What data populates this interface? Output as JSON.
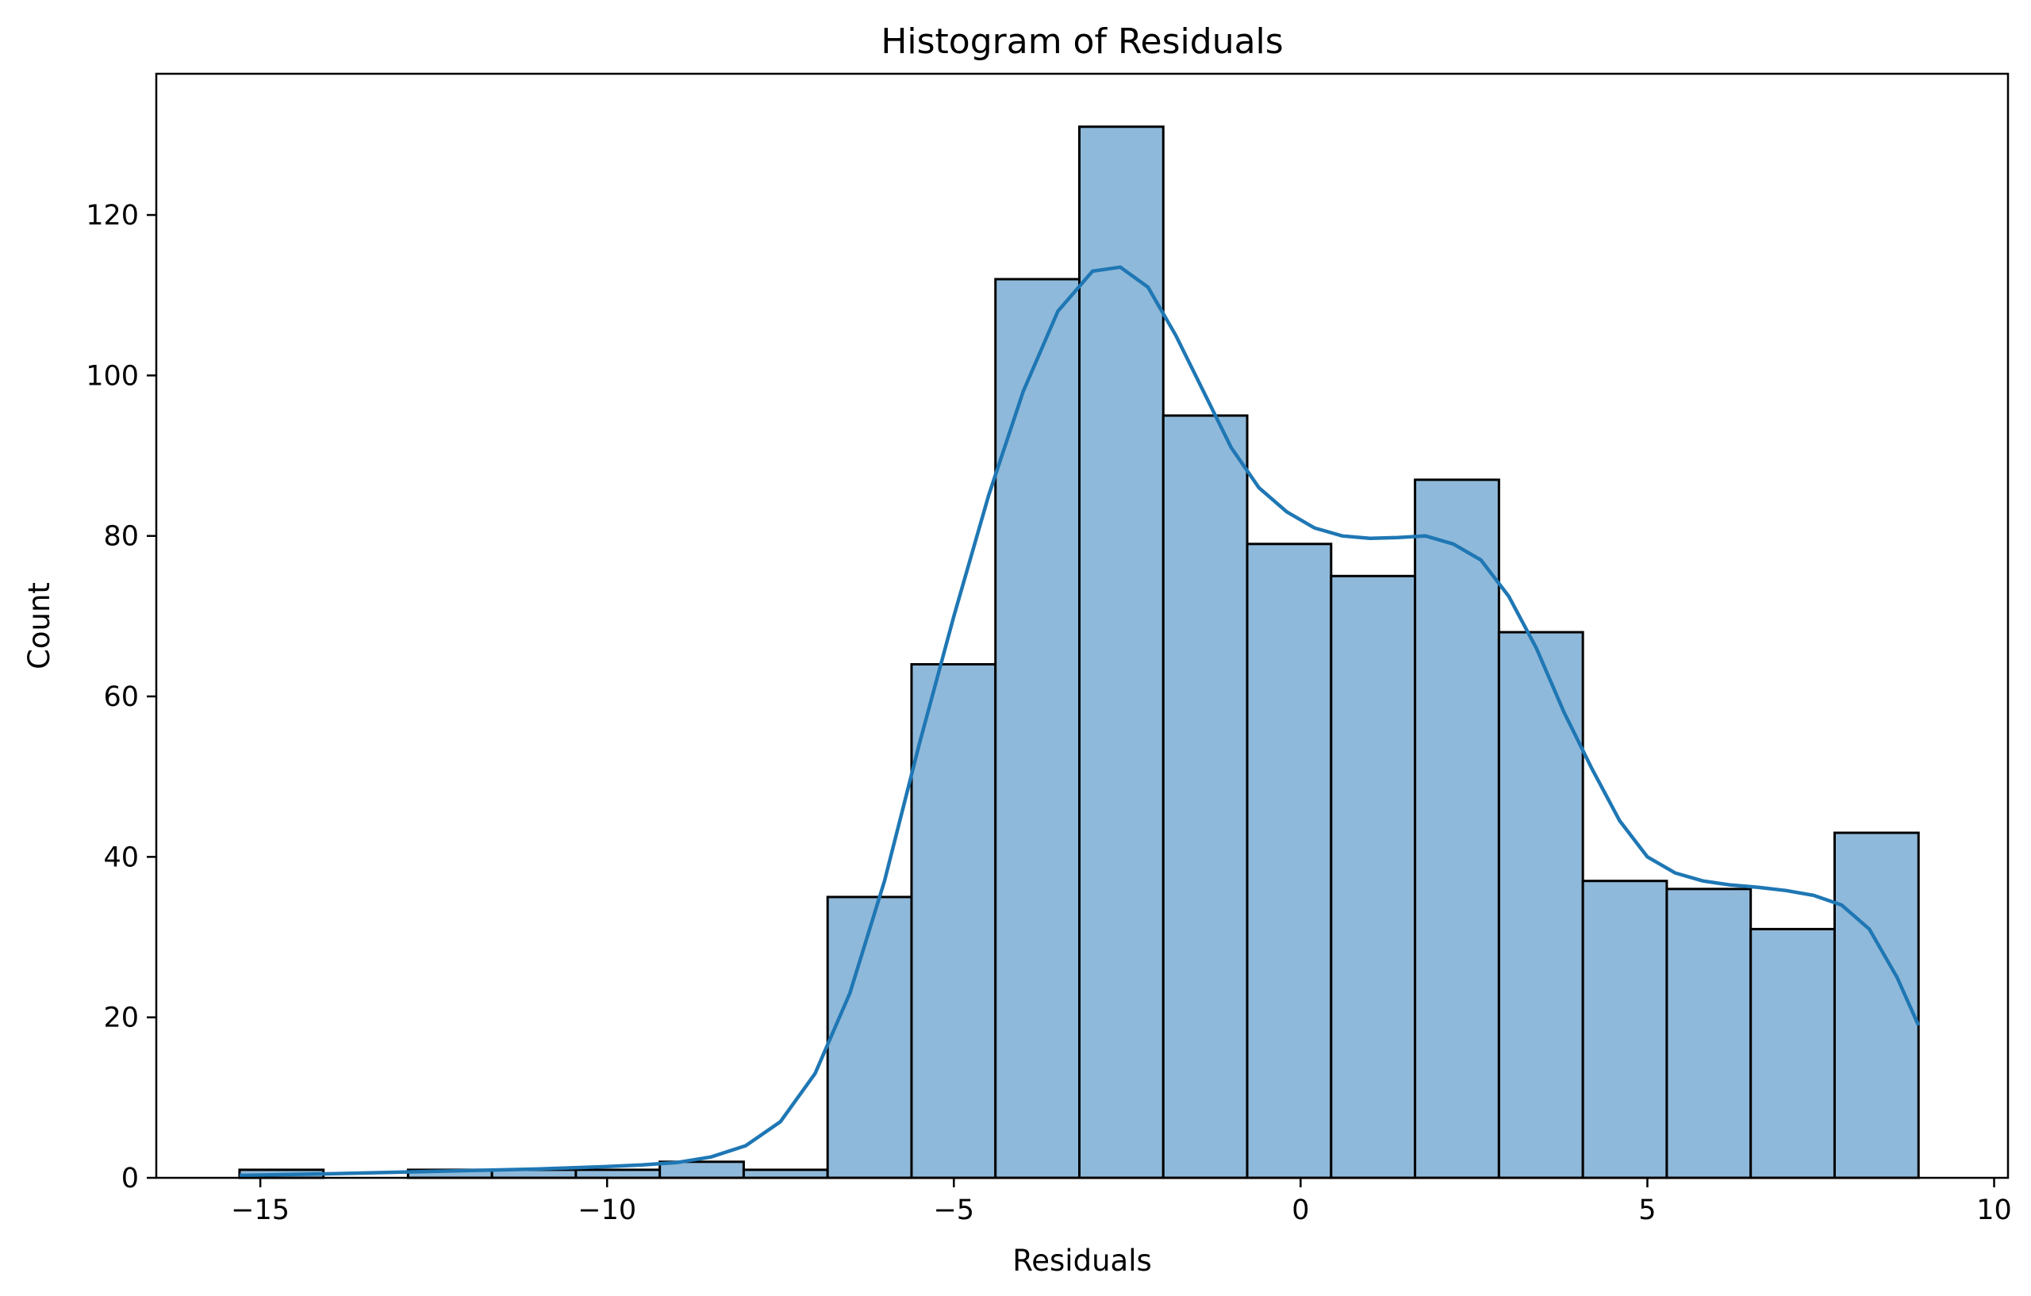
{
  "chart_data": {
    "type": "bar",
    "subtype": "histogram_with_kde",
    "title": "Histogram of Residuals",
    "xlabel": "Residuals",
    "ylabel": "Count",
    "xlim": [
      -16.5,
      10.2
    ],
    "ylim": [
      0,
      137.6
    ],
    "xticks": [
      -15,
      -10,
      -5,
      0,
      5,
      10
    ],
    "xtick_labels": [
      "−15",
      "−10",
      "−5",
      "0",
      "5",
      "10"
    ],
    "yticks": [
      0,
      20,
      40,
      60,
      80,
      100,
      120
    ],
    "ytick_labels": [
      "0",
      "20",
      "40",
      "60",
      "80",
      "100",
      "120"
    ],
    "grid": false,
    "legend": "none",
    "colors": {
      "bar_fill": "#8fb9da",
      "bar_edge": "#000000",
      "kde_line": "#1f77b4"
    },
    "bin_edges": [
      -15.3,
      -14.09,
      -12.87,
      -11.66,
      -10.45,
      -9.24,
      -8.03,
      -6.82,
      -5.61,
      -4.4,
      -3.19,
      -1.98,
      -0.77,
      0.44,
      1.65,
      2.86,
      4.07,
      5.28,
      6.49,
      7.7,
      8.91
    ],
    "counts": [
      1,
      0,
      1,
      1,
      1,
      2,
      1,
      35,
      64,
      112,
      131,
      95,
      79,
      75,
      87,
      68,
      37,
      36,
      31,
      43
    ],
    "kde": {
      "x": [
        -15.3,
        -14.0,
        -13.0,
        -12.0,
        -11.0,
        -10.0,
        -9.5,
        -9.0,
        -8.5,
        -8.0,
        -7.5,
        -7.0,
        -6.5,
        -6.0,
        -5.5,
        -5.0,
        -4.5,
        -4.0,
        -3.5,
        -3.0,
        -2.6,
        -2.2,
        -1.8,
        -1.4,
        -1.0,
        -0.6,
        -0.2,
        0.2,
        0.6,
        1.0,
        1.4,
        1.8,
        2.2,
        2.6,
        3.0,
        3.4,
        3.8,
        4.2,
        4.6,
        5.0,
        5.4,
        5.8,
        6.2,
        6.6,
        7.0,
        7.4,
        7.8,
        8.2,
        8.6,
        8.91
      ],
      "y": [
        0.3,
        0.5,
        0.7,
        0.9,
        1.1,
        1.4,
        1.6,
        1.9,
        2.6,
        4.0,
        7.0,
        13.0,
        23.0,
        37.0,
        54.0,
        70.0,
        85.0,
        98.0,
        108.0,
        113.0,
        113.5,
        111.0,
        105.0,
        98.0,
        91.0,
        86.0,
        83.0,
        81.0,
        80.0,
        79.7,
        79.8,
        80.0,
        79.0,
        77.0,
        72.5,
        66.0,
        58.0,
        51.0,
        44.5,
        40.0,
        38.0,
        37.0,
        36.5,
        36.2,
        35.8,
        35.2,
        34.0,
        31.0,
        25.0,
        19.0
      ]
    }
  }
}
